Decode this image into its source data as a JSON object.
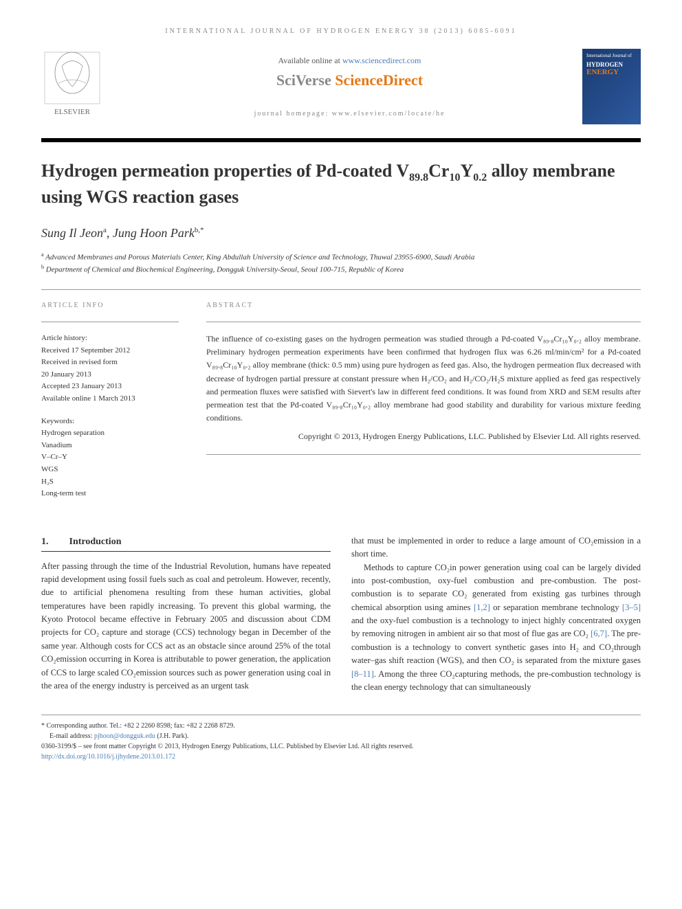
{
  "header": {
    "journal_ref": "INTERNATIONAL JOURNAL OF HYDROGEN ENERGY 38 (2013) 6085-6091"
  },
  "top": {
    "available_text": "Available online at ",
    "available_link": "www.sciencedirect.com",
    "sciverse_prefix": "SciVerse ",
    "sciverse_main": "ScienceDirect",
    "homepage_text": "journal homepage: www.elsevier.com/locate/he",
    "elsevier_label": "ELSEVIER",
    "cover_line1": "International Journal of",
    "cover_line2": "HYDROGEN",
    "cover_line3": "ENERGY"
  },
  "title": {
    "text_html": "Hydrogen permeation properties of Pd-coated V<sub>89.8</sub>Cr<sub>10</sub>Y<sub>0.2</sub> alloy membrane using WGS reaction gases"
  },
  "authors": {
    "a1_name": "Sung Il Jeon",
    "a1_sup": "a",
    "a2_name": "Jung Hoon Park",
    "a2_sup": "b,*"
  },
  "affiliations": {
    "aff_a_sup": "a",
    "aff_a": "Advanced Membranes and Porous Materials Center, King Abdullah University of Science and Technology, Thuwal 23955-6900, Saudi Arabia",
    "aff_b_sup": "b",
    "aff_b": "Department of Chemical and Biochemical Engineering, Dongguk University-Seoul, Seoul 100-715, Republic of Korea"
  },
  "article_info": {
    "heading": "ARTICLE INFO",
    "history_label": "Article history:",
    "received": "Received 17 September 2012",
    "revised_label": "Received in revised form",
    "revised_date": "20 January 2013",
    "accepted": "Accepted 23 January 2013",
    "online": "Available online 1 March 2013",
    "keywords_label": "Keywords:",
    "keywords": [
      "Hydrogen separation",
      "Vanadium",
      "V–Cr–Y",
      "WGS",
      "H₂S",
      "Long-term test"
    ]
  },
  "abstract": {
    "heading": "ABSTRACT",
    "text": "The influence of co-existing gases on the hydrogen permeation was studied through a Pd-coated V₈₉.₈Cr₁₀Y₀.₂ alloy membrane. Preliminary hydrogen permeation experiments have been confirmed that hydrogen flux was 6.26 ml/min/cm² for a Pd-coated V₈₉.₈Cr₁₀Y₀.₂ alloy membrane (thick: 0.5 mm) using pure hydrogen as feed gas. Also, the hydrogen permeation flux decreased with decrease of hydrogen partial pressure at constant pressure when H₂/CO₂ and H₂/CO₂/H₂S mixture applied as feed gas respectively and permeation fluxes were satisfied with Sievert's law in different feed conditions. It was found from XRD and SEM results after permeation test that the Pd-coated V₈₉.₈Cr₁₀Y₀.₂ alloy membrane had good stability and durability for various mixture feeding conditions.",
    "copyright": "Copyright © 2013, Hydrogen Energy Publications, LLC. Published by Elsevier Ltd. All rights reserved."
  },
  "body": {
    "section_num": "1.",
    "section_title": "Introduction",
    "col1_p1": "After passing through the time of the Industrial Revolution, humans have repeated rapid development using fossil fuels such as coal and petroleum. However, recently, due to artificial phenomena resulting from these human activities, global temperatures have been rapidly increasing. To prevent this global warming, the Kyoto Protocol became effective in February 2005 and discussion about CDM projects for CO₂ capture and storage (CCS) technology began in December of the same year. Although costs for CCS act as an obstacle since around 25% of the total CO₂emission occurring in Korea is attributable to power generation, the application of CCS to large scaled CO₂emission sources such as power generation using coal in the area of the energy industry is perceived as an urgent task",
    "col2_p1": "that must be implemented in order to reduce a large amount of CO₂emission in a short time.",
    "col2_p2_part1": "Methods to capture CO₂in power generation using coal can be largely divided into post-combustion, oxy-fuel combustion and pre-combustion. The post-combustion is to separate CO₂ generated from existing gas turbines through chemical absorption using amines ",
    "col2_ref1": "[1,2]",
    "col2_p2_part2": " or separation membrane technology ",
    "col2_ref2": "[3–5]",
    "col2_p2_part3": " and the oxy-fuel combustion is a technology to inject highly concentrated oxygen by removing nitrogen in ambient air so that most of flue gas are CO₂ ",
    "col2_ref3": "[6,7]",
    "col2_p2_part4": ". The pre-combustion is a technology to convert synthetic gases into H₂ and CO₂through water–gas shift reaction (WGS), and then CO₂ is separated from the mixture gases ",
    "col2_ref4": "[8–11]",
    "col2_p2_part5": ". Among the three CO₂capturing methods, the pre-combustion technology is the clean energy technology that can simultaneously"
  },
  "footer": {
    "corr_label": "* Corresponding author.",
    "corr_contact": " Tel.: +82 2 2260 8598; fax: +82 2 2268 8729.",
    "email_label": "E-mail address: ",
    "email": "pjhoon@dongguk.edu",
    "email_suffix": " (J.H. Park).",
    "issn_line": "0360-3199/$ – see front matter Copyright © 2013, Hydrogen Energy Publications, LLC. Published by Elsevier Ltd. All rights reserved.",
    "doi": "http://dx.doi.org/10.1016/j.ijhydene.2013.01.172"
  },
  "colors": {
    "link": "#4a7db8",
    "orange": "#e67817",
    "cover_bg": "#1a3a6e"
  }
}
